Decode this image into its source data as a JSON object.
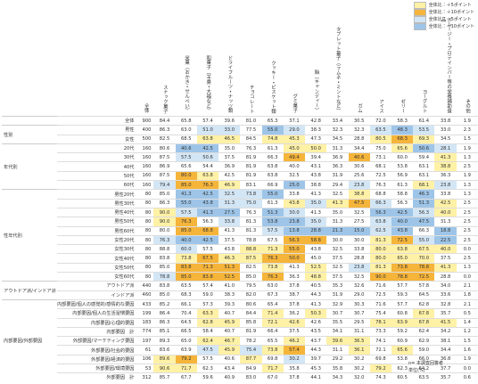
{
  "legend": [
    {
      "label": "全体比：＋5ポイント",
      "color": "#fff1a6",
      "threshold": 5
    },
    {
      "label": "全体比：＋10ポイント",
      "color": "#f5b43a",
      "threshold": 10
    },
    {
      "label": "全体比：－5ポイント",
      "color": "#d3e6f5",
      "threshold": -5
    },
    {
      "label": "全体比：－10ポイント",
      "color": "#9ec5e8",
      "threshold": -10
    }
  ],
  "table": {
    "header": [
      "全体",
      "スナック菓子",
      "米菓（おかき・せんべい）",
      "和菓子（羊羹・大福など）",
      "ドライフルーツ・ナッツ類",
      "チョコレート",
      "クッキー・ビスケット類",
      "グミ菓子",
      "飴（キャンディー）",
      "タブレット菓子（ラムネ・ミントなど）",
      "ガム",
      "アイス",
      "ゼリー",
      "ヨーグルト",
      "スムージー・プロテインバー等の栄養補助食品",
      "その他"
    ],
    "groups": [
      {
        "rows": [
          {
            "label": "全体",
            "n": 900,
            "values": [
              84.4,
              65.8,
              57.4,
              39.6,
              81.0,
              65.3,
              37.1,
              42.8,
              33.4,
              30.5,
              72.0,
              58.3,
              61.4,
              33.8,
              1.9
            ]
          }
        ]
      },
      {
        "label": "性別",
        "rows": [
          {
            "label": "男性",
            "n": 400,
            "values": [
              86.3,
              63.0,
              51.0,
              33.0,
              77.5,
              55.0,
              29.0,
              38.3,
              32.3,
              32.3,
              63.5,
              48.3,
              53.5,
              33.0,
              2.3
            ]
          },
          {
            "label": "女性",
            "n": 500,
            "values": [
              82.5,
              68.5,
              63.8,
              46.5,
              84.5,
              74.8,
              45.3,
              47.3,
              34.5,
              28.8,
              80.5,
              68.3,
              69.3,
              34.5,
              1.5
            ]
          }
        ]
      },
      {
        "label": "年代別",
        "rows": [
          {
            "label": "20代",
            "n": 160,
            "values": [
              80.6,
              40.6,
              42.5,
              35.0,
              76.3,
              61.3,
              45.0,
              50.0,
              31.3,
              34.4,
              75.0,
              65.6,
              50.6,
              28.1,
              1.9
            ]
          },
          {
            "label": "30代",
            "n": 160,
            "values": [
              87.5,
              57.5,
              50.6,
              37.5,
              81.9,
              66.3,
              49.4,
              39.4,
              36.9,
              40.6,
              73.1,
              60.0,
              59.4,
              41.3,
              1.3
            ]
          },
          {
            "label": "40代",
            "n": 160,
            "values": [
              86.9,
              65.6,
              54.4,
              36.9,
              81.9,
              63.8,
              40.0,
              43.1,
              36.3,
              30.6,
              68.1,
              53.8,
              63.1,
              38.8,
              2.5
            ]
          },
          {
            "label": "50代",
            "n": 160,
            "values": [
              87.5,
              80.0,
              63.8,
              42.5,
              81.9,
              63.8,
              32.5,
              43.8,
              31.9,
              25.6,
              72.5,
              56.9,
              63.1,
              36.3,
              1.9
            ]
          },
          {
            "label": "60代",
            "n": 160,
            "values": [
              79.4,
              85.0,
              76.3,
              46.9,
              83.1,
              66.9,
              25.0,
              38.8,
              29.4,
              23.8,
              76.3,
              61.3,
              68.1,
              23.8,
              1.3
            ]
          }
        ]
      },
      {
        "label": "性年代別",
        "rows": [
          {
            "label": "男性20代",
            "n": 80,
            "values": [
              85.0,
              41.3,
              42.5,
              32.5,
              73.8,
              55.0,
              33.8,
              41.3,
              32.5,
              38.8,
              68.8,
              58.8,
              46.3,
              33.8,
              1.3
            ]
          },
          {
            "label": "男性30代",
            "n": 80,
            "values": [
              86.3,
              55.0,
              43.8,
              31.3,
              75.0,
              61.3,
              43.8,
              35.0,
              41.3,
              47.5,
              66.3,
              56.3,
              51.3,
              42.5,
              2.5
            ]
          },
          {
            "label": "男性40代",
            "n": 80,
            "values": [
              90.0,
              57.5,
              41.3,
              27.5,
              76.3,
              51.3,
              30.0,
              41.3,
              35.0,
              32.5,
              56.3,
              42.5,
              56.3,
              40.0,
              2.5
            ]
          },
          {
            "label": "男性50代",
            "n": 80,
            "values": [
              90.0,
              76.3,
              56.3,
              33.8,
              81.3,
              53.8,
              23.8,
              35.0,
              31.3,
              27.5,
              63.8,
              40.0,
              47.5,
              31.3,
              2.5
            ]
          },
          {
            "label": "男性60代",
            "n": 80,
            "values": [
              80.0,
              85.0,
              68.8,
              41.3,
              81.3,
              57.5,
              13.8,
              28.8,
              21.3,
              15.0,
              62.5,
              43.8,
              66.3,
              18.8,
              2.5
            ]
          },
          {
            "label": "女性20代",
            "n": 80,
            "values": [
              76.3,
              40.0,
              42.5,
              37.5,
              78.8,
              67.5,
              56.3,
              58.8,
              30.0,
              30.0,
              81.3,
              72.5,
              55.0,
              22.5,
              2.5
            ]
          },
          {
            "label": "女性30代",
            "n": 80,
            "values": [
              88.8,
              60.0,
              57.5,
              43.8,
              88.8,
              71.3,
              55.0,
              43.8,
              32.5,
              33.8,
              80.0,
              63.8,
              67.5,
              40.0,
              0.0
            ]
          },
          {
            "label": "女性40代",
            "n": 80,
            "values": [
              83.8,
              73.8,
              67.5,
              46.3,
              87.5,
              76.3,
              50.0,
              45.0,
              37.5,
              28.8,
              80.0,
              65.0,
              70.0,
              37.5,
              2.5
            ]
          },
          {
            "label": "女性50代",
            "n": 80,
            "values": [
              85.0,
              83.8,
              71.3,
              51.3,
              82.5,
              73.8,
              41.3,
              52.5,
              32.5,
              23.8,
              81.3,
              73.8,
              78.8,
              41.3,
              1.3
            ]
          },
          {
            "label": "女性60代",
            "n": 80,
            "values": [
              78.8,
              85.0,
              83.8,
              52.5,
              85.0,
              76.3,
              36.3,
              48.8,
              37.5,
              32.5,
              90.0,
              78.8,
              72.5,
              28.8,
              0.0
            ]
          }
        ]
      },
      {
        "label": "アウトドア派/インドア派",
        "rows": [
          {
            "label": "アウトドア派",
            "n": 440,
            "values": [
              83.8,
              63.5,
              57.4,
              41.0,
              79.5,
              63.0,
              37.8,
              40.5,
              35.3,
              32.6,
              71.6,
              57.7,
              57.8,
              34.0,
              2.1
            ]
          },
          {
            "label": "インドア派",
            "n": 460,
            "values": [
              85.0,
              68.3,
              59.0,
              38.3,
              82.0,
              67.3,
              38.7,
              44.3,
              31.9,
              29.0,
              72.5,
              59.3,
              64.5,
              33.6,
              1.8
            ]
          }
        ]
      },
      {
        "label": "内部要因/外部要因",
        "rows": [
          {
            "label": "内部要因/個人の感覚的/感情的な要因",
            "n": 433,
            "values": [
              85.2,
              66.1,
              57.3,
              39.3,
              80.6,
              65.4,
              37.8,
              41.3,
              32.9,
              30.3,
              71.6,
              57.7,
              62.8,
              32.8,
              2.1
            ]
          },
          {
            "label": "内部要因/個人の生活習慣要因",
            "n": 199,
            "values": [
              86.4,
              70.4,
              63.3,
              40.7,
              84.4,
              71.4,
              36.2,
              50.3,
              30.7,
              30.7,
              75.4,
              60.8,
              67.8,
              35.7,
              0.5
            ]
          },
          {
            "label": "内部要因/心理的要因",
            "n": 183,
            "values": [
              86.3,
              64.5,
              62.8,
              45.9,
              85.8,
              72.1,
              42.6,
              42.6,
              35.5,
              29.5,
              78.1,
              63.9,
              67.8,
              41.5,
              1.4
            ]
          },
          {
            "label": "内部要因　計",
            "n": 774,
            "values": [
              85.1,
              66.5,
              58.4,
              40.7,
              81.9,
              66.4,
              37.5,
              43.5,
              34.1,
              31.1,
              73.3,
              59.2,
              62.4,
              34.2,
              1.2
            ]
          },
          {
            "label": "外部要因/マーケティング要因",
            "n": 197,
            "values": [
              89.3,
              65.0,
              62.4,
              46.7,
              78.2,
              65.5,
              46.2,
              43.7,
              39.6,
              36.5,
              74.1,
              60.9,
              62.9,
              38.1,
              1.5
            ]
          },
          {
            "label": "外部要因/社会的要因",
            "n": 61,
            "values": [
              83.6,
              63.9,
              47.5,
              45.9,
              75.4,
              73.8,
              57.4,
              44.3,
              31.1,
              36.1,
              72.1,
              65.6,
              59.0,
              34.4,
              1.6
            ]
          },
          {
            "label": "外部要因/経済的要因",
            "n": 106,
            "values": [
              89.6,
              79.2,
              57.5,
              40.6,
              87.7,
              69.8,
              30.2,
              39.7,
              29.2,
              30.2,
              69.8,
              53.8,
              66.0,
              36.8,
              1.9
            ]
          },
          {
            "label": "外部要因/環境要因",
            "n": 53,
            "values": [
              90.6,
              71.7,
              62.3,
              43.4,
              84.9,
              71.7,
              35.8,
              45.3,
              35.8,
              30.2,
              79.2,
              62.3,
              64.2,
              37.7,
              0.0
            ]
          },
          {
            "label": "外部要因　計",
            "n": 312,
            "values": [
              85.7,
              67.7,
              59.6,
              40.9,
              83.0,
              67.0,
              37.8,
              44.1,
              34.3,
              32.0,
              74.3,
              60.5,
              63.5,
              35.7,
              0.6
            ]
          }
        ]
      }
    ]
  },
  "footer": {
    "note": "n= 本調査回答者",
    "unit": "単位(%)"
  }
}
